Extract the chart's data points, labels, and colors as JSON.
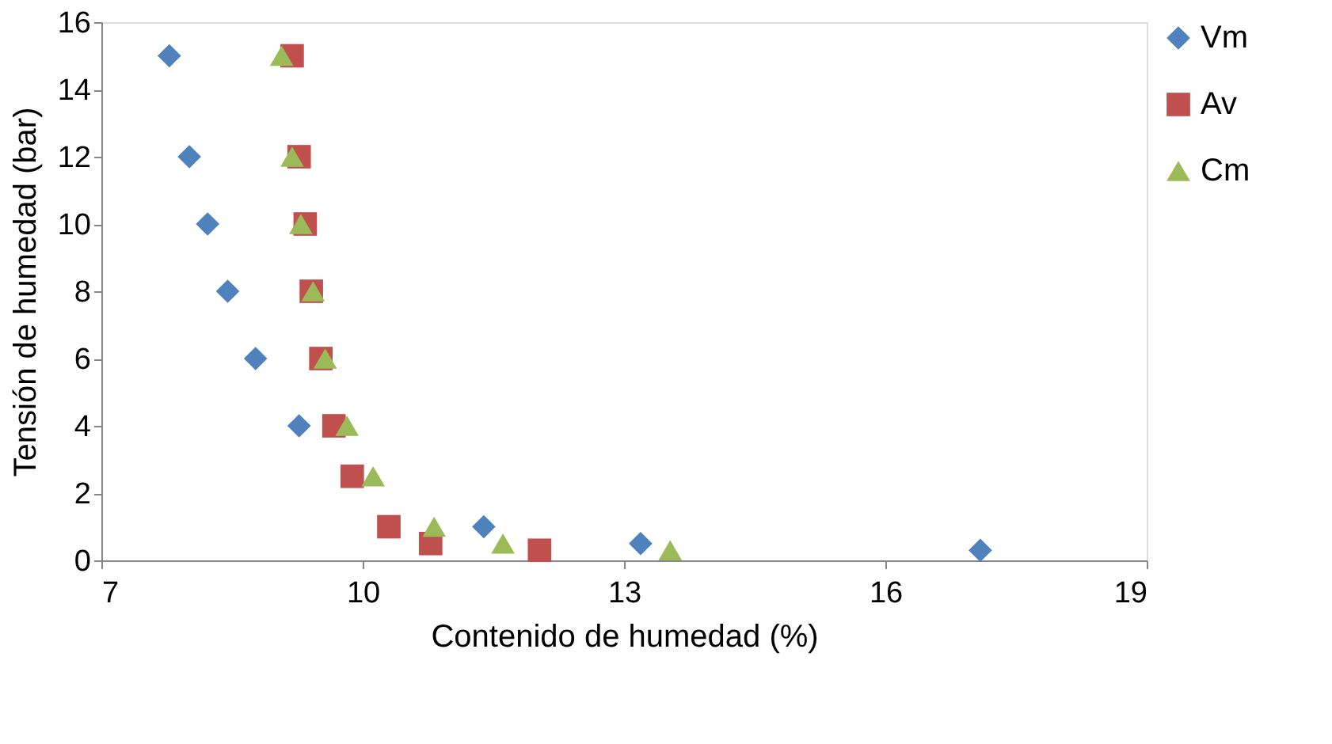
{
  "chart_data": {
    "type": "scatter",
    "xlabel": "Contenido de humedad (%)",
    "ylabel": "Tensión de humedad (bar)",
    "xlim": [
      7,
      19
    ],
    "xticks": [
      7,
      10,
      13,
      16,
      19
    ],
    "ylim": [
      0,
      16
    ],
    "yticks": [
      0,
      2,
      4,
      6,
      8,
      10,
      12,
      14,
      16
    ],
    "grid": false,
    "legend": "right",
    "series": [
      {
        "name": "Vm",
        "color": "#4f81bd",
        "marker": "diamond",
        "x": [
          7.78,
          8.01,
          8.22,
          8.45,
          8.77,
          9.27,
          11.39,
          13.19,
          17.09
        ],
        "values": [
          15,
          12,
          10,
          8,
          6,
          4,
          1,
          0.5,
          0.3
        ]
      },
      {
        "name": "Av",
        "color": "#c0504d",
        "marker": "square",
        "x": [
          9.19,
          9.27,
          9.34,
          9.41,
          9.52,
          9.67,
          9.88,
          10.3,
          10.78,
          12.03
        ],
        "values": [
          15,
          12,
          10,
          8,
          6,
          4,
          2.5,
          1,
          0.5,
          0.3
        ]
      },
      {
        "name": "Cm",
        "color": "#9bbb59",
        "marker": "triangle",
        "x": [
          9.07,
          9.19,
          9.29,
          9.43,
          9.57,
          9.82,
          10.12,
          10.82,
          11.61,
          13.53
        ],
        "values": [
          15,
          12,
          10,
          8,
          6,
          4,
          2.5,
          1,
          0.5,
          0.3
        ]
      }
    ]
  }
}
